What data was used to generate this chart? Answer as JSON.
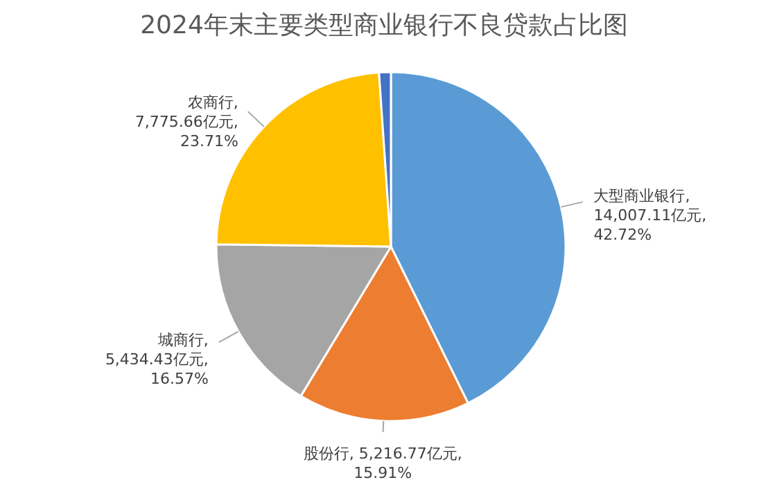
{
  "chart_data": {
    "type": "pie",
    "title": "2024年末主要类型商业银行不良贷款占比图",
    "categories": [
      "大型商业银行",
      "股份行",
      "城商行",
      "农商行",
      null
    ],
    "values": [
      42.72,
      15.91,
      16.57,
      23.71,
      1.09
    ],
    "value_labels": [
      ",\n14,007.11亿元,\n42.72%",
      ", 5,216.77亿元,\n15.91%",
      ",\n5,434.43亿元,\n16.57%",
      ",\n7,775.66亿元,\n23.71%",
      null
    ],
    "colors": [
      "#5b9bd5",
      "#ed7d31",
      "#a5a5a5",
      "#ffc000",
      "#4472c4"
    ]
  }
}
